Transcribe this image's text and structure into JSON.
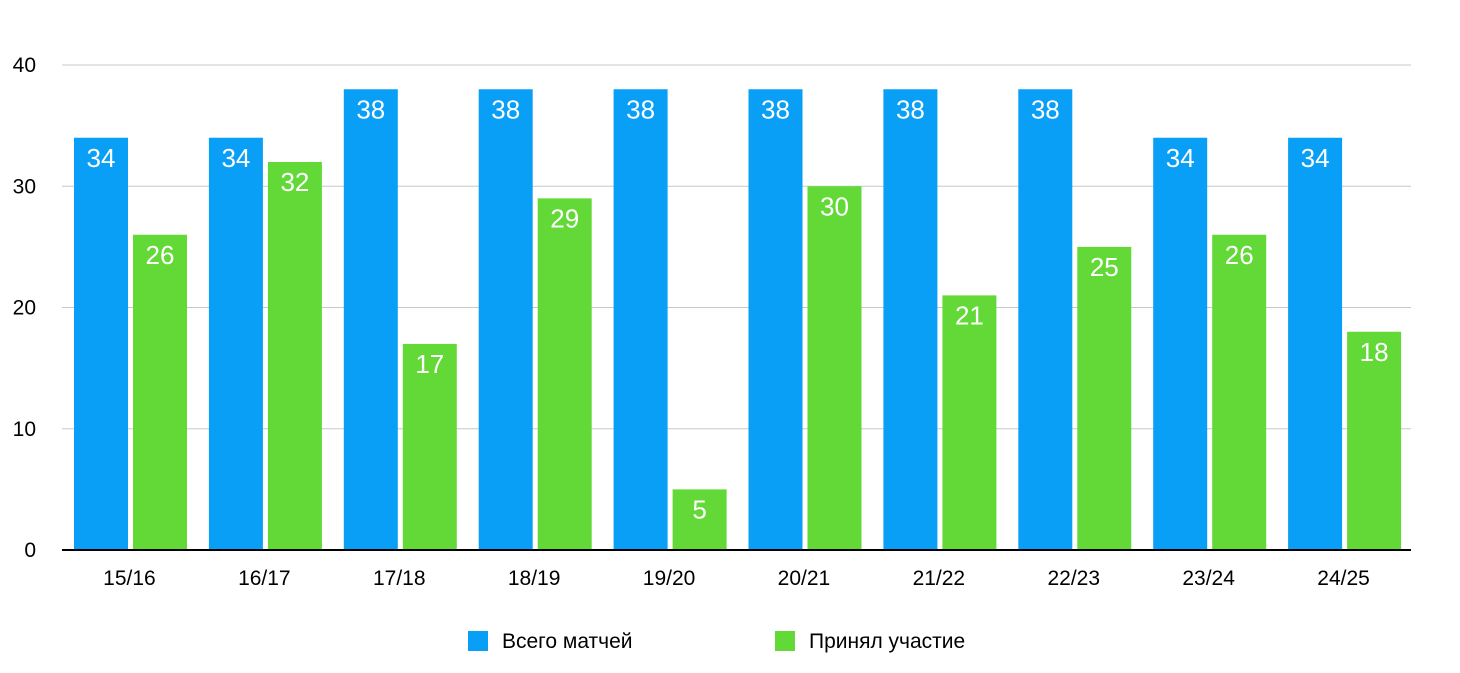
{
  "chart_data": {
    "type": "bar",
    "categories": [
      "15/16",
      "16/17",
      "17/18",
      "18/19",
      "19/20",
      "20/21",
      "21/22",
      "22/23",
      "23/24",
      "24/25"
    ],
    "series": [
      {
        "name": "Всего матчей",
        "color": "#0a9ff6",
        "values": [
          34,
          34,
          38,
          38,
          38,
          38,
          38,
          38,
          34,
          34
        ]
      },
      {
        "name": "Принял участие",
        "color": "#63d937",
        "values": [
          26,
          32,
          17,
          29,
          5,
          30,
          21,
          25,
          26,
          18
        ]
      }
    ],
    "ylim": [
      0,
      40
    ],
    "yticks": [
      0,
      10,
      20,
      30,
      40
    ],
    "grid": true,
    "data_labels": true,
    "legend_position": "bottom",
    "title": "",
    "xlabel": "",
    "ylabel": ""
  }
}
